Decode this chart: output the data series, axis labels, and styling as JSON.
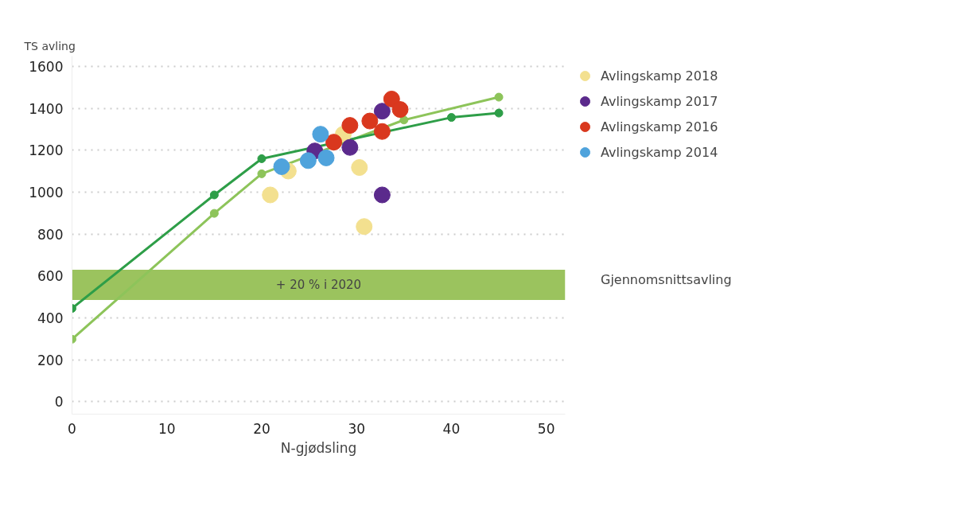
{
  "chart_data": {
    "type": "scatter",
    "ylabel": "TS avling",
    "xlabel": "N-gjødsling",
    "xlim": [
      0,
      52
    ],
    "ylim": [
      -60,
      1650
    ],
    "xticks": [
      0,
      10,
      20,
      30,
      40,
      50
    ],
    "yticks": [
      0,
      200,
      400,
      600,
      800,
      1000,
      1200,
      1400,
      1600
    ],
    "grid": "y",
    "legend": "right",
    "marker": "circle",
    "series": [
      {
        "type": "line",
        "color": "#8dc45a",
        "x": [
          0,
          15,
          20,
          35,
          45
        ],
        "values": [
          298,
          899,
          1088,
          1345,
          1454
        ]
      },
      {
        "type": "line",
        "color": "#2e9e48",
        "x": [
          0,
          15,
          20,
          40,
          45
        ],
        "values": [
          445,
          987,
          1160,
          1357,
          1378
        ]
      },
      {
        "name": "Avlingskamp 2018",
        "color": "#f3e08f",
        "x": [
          20.9,
          22.8,
          28.6,
          30.3,
          30.8
        ],
        "values": [
          987,
          1101,
          1277,
          1118,
          836
        ]
      },
      {
        "name": "Avlingskamp 2017",
        "color": "#5b2a8c",
        "x": [
          25.6,
          29.3,
          32.7,
          32.7
        ],
        "values": [
          1197,
          1214,
          1387,
          987
        ]
      },
      {
        "name": "Avlingskamp 2016",
        "color": "#d9381e",
        "x": [
          27.6,
          29.3,
          31.4,
          32.7,
          33.7,
          34.6
        ],
        "values": [
          1239,
          1319,
          1340,
          1290,
          1445,
          1395
        ]
      },
      {
        "name": "Avlingskamp 2014",
        "color": "#4fa3dc",
        "x": [
          22.1,
          26.2,
          24.9,
          26.8
        ],
        "values": [
          1122,
          1277,
          1151,
          1164
        ]
      }
    ],
    "bands": [
      {
        "axis": "y",
        "from": 485,
        "to": 630,
        "label": "+ 20 % i 2020",
        "color": "#9bc35e"
      }
    ],
    "annotations": [
      "Gjennomsnittsavling"
    ]
  }
}
